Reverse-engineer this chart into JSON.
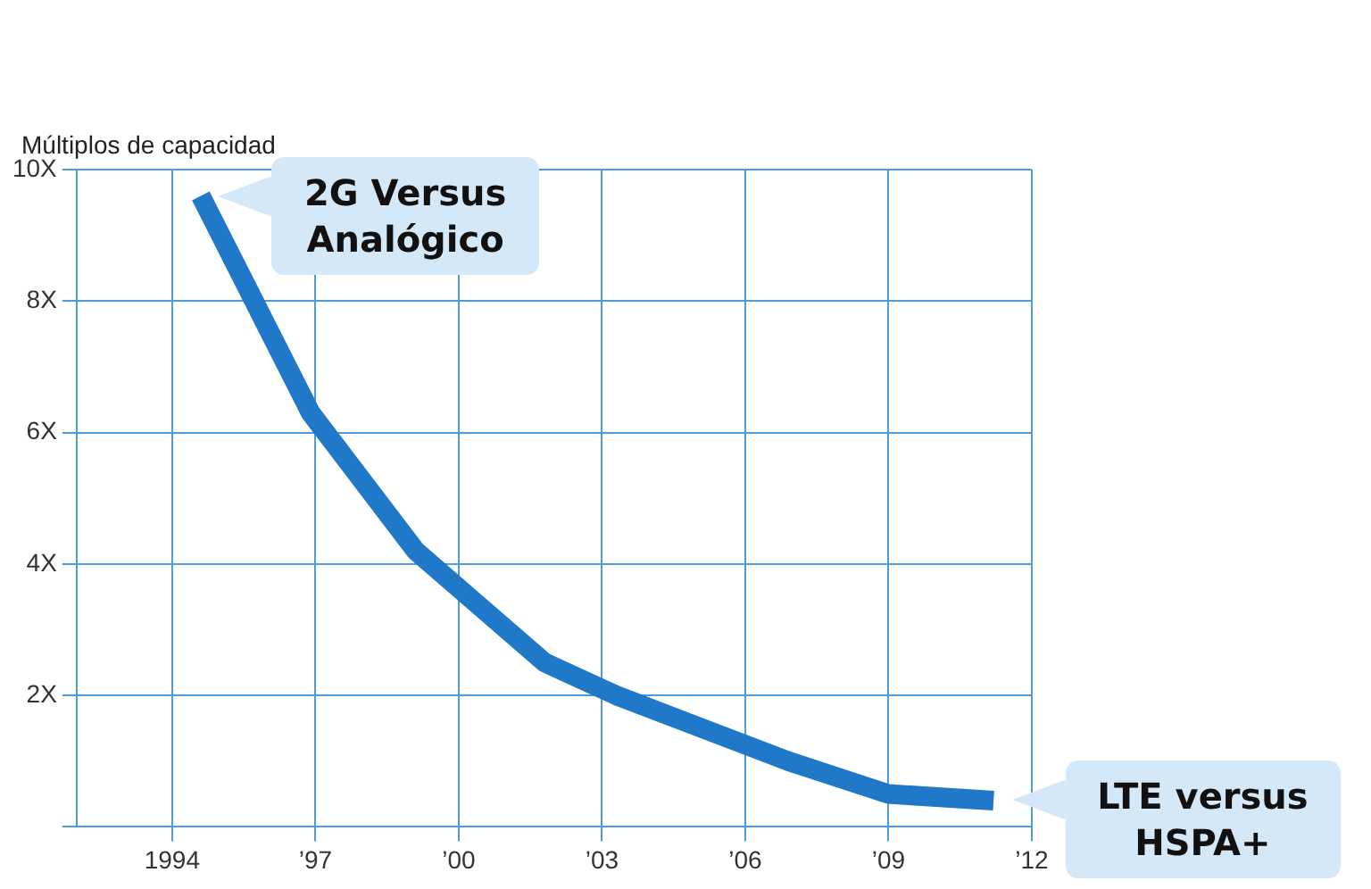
{
  "chart_data": {
    "type": "line",
    "ylabel": "Múltiplos de capacidad",
    "x": [
      1994.6,
      1996.9,
      1999.1,
      2001.8,
      2003.3,
      2006.9,
      2009,
      2011.2
    ],
    "series": [
      {
        "color": "#1f78c8",
        "values": [
          9.6,
          6.3,
          4.2,
          2.5,
          2,
          1,
          0.5,
          0.4
        ]
      }
    ],
    "xlim": [
      1992,
      2012
    ],
    "xticks": [
      {
        "value": 1994,
        "label": "1994"
      },
      {
        "value": 1997,
        "label": "’97"
      },
      {
        "value": 2000,
        "label": "’00"
      },
      {
        "value": 2003,
        "label": "’03"
      },
      {
        "value": 2006,
        "label": "’06"
      },
      {
        "value": 2009,
        "label": "’09"
      },
      {
        "value": 2012,
        "label": "’12"
      }
    ],
    "ylim": [
      0,
      10
    ],
    "yticks": [
      {
        "value": 0,
        "label": null
      },
      {
        "value": 2,
        "label": "2X"
      },
      {
        "value": 4,
        "label": "4X"
      },
      {
        "value": 6,
        "label": "6X"
      },
      {
        "value": 8,
        "label": "8X"
      },
      {
        "value": 10,
        "label": "10X"
      }
    ],
    "grid": true,
    "marker": "none",
    "line_style": "solid",
    "legend": false,
    "annotations": [
      {
        "text": "2G Versus\nAnalógico",
        "x": 1994.6,
        "y": 9.6
      },
      {
        "text": "LTE versus\nHSPA+",
        "x": 2011.2,
        "y": 0.4
      }
    ]
  }
}
